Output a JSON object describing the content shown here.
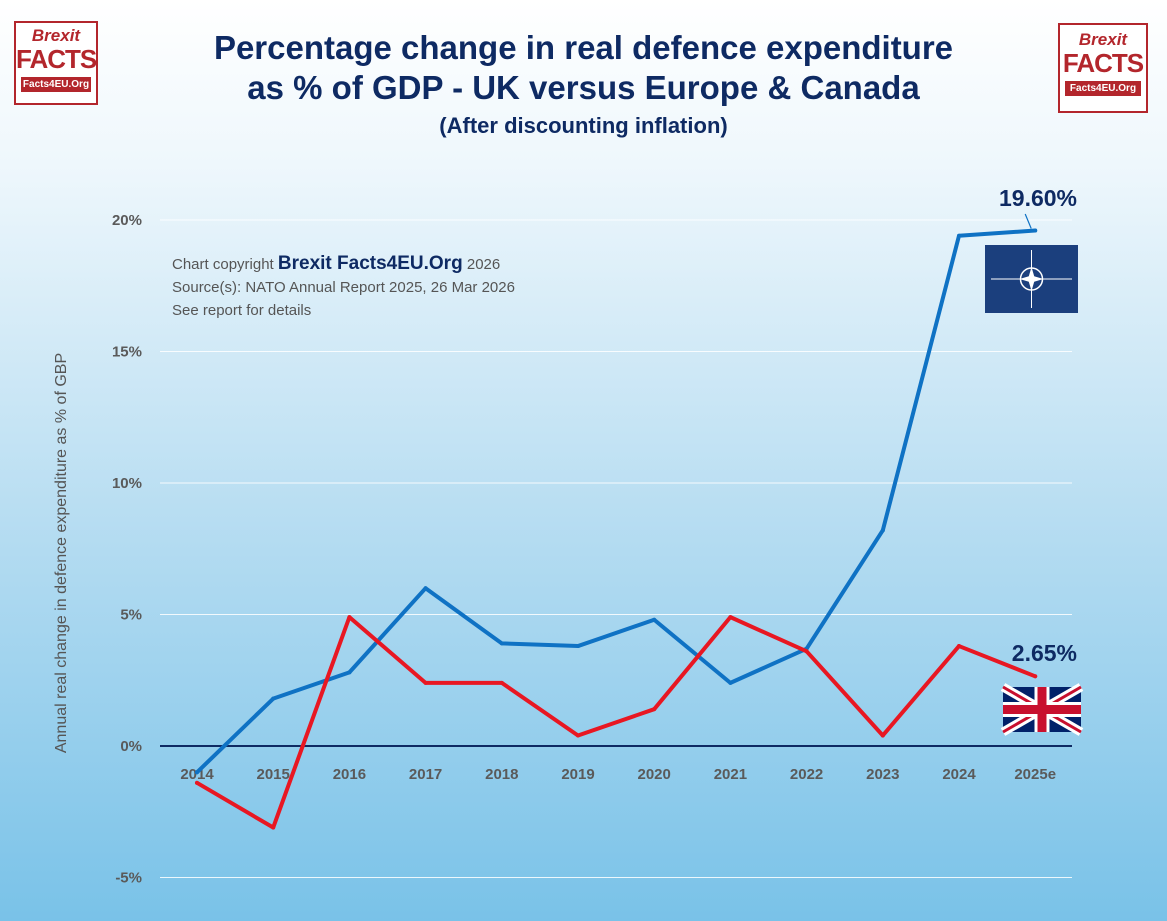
{
  "header": {
    "title_line1": "Percentage change in real defence expenditure",
    "title_line2": "as % of GDP - UK versus Europe & Canada",
    "subtitle": "(After discounting inflation)"
  },
  "logo": {
    "line1": "Brexit",
    "line2": "FACTS",
    "line3": "Facts4EU.Org"
  },
  "credit": {
    "prefix": "Chart copyright ",
    "brand": "Brexit Facts4EU.Org",
    "year": " 2026",
    "source": "Source(s): NATO Annual Report 2025, 26 Mar 2026",
    "note": "See report for details"
  },
  "colors": {
    "nato": "#0f72c4",
    "uk": "#e81722",
    "title": "#0e2a63"
  },
  "chart_data": {
    "type": "line",
    "title": "Percentage change in real defence expenditure as % of GDP - UK versus Europe & Canada",
    "subtitle": "(After discounting inflation)",
    "ylabel": "Annual real change in defence expenditure as % of GBP",
    "categories": [
      "2014",
      "2015",
      "2016",
      "2017",
      "2018",
      "2019",
      "2020",
      "2021",
      "2022",
      "2023",
      "2024",
      "2025e"
    ],
    "ylim": [
      -5,
      20
    ],
    "yticks": [
      -5,
      0,
      5,
      10,
      15,
      20
    ],
    "ytick_labels": [
      "-5%",
      "0%",
      "5%",
      "10%",
      "15%",
      "20%"
    ],
    "grid": true,
    "series": [
      {
        "key": "nato",
        "values": [
          -1.0,
          1.8,
          2.8,
          6.0,
          3.9,
          3.8,
          4.8,
          2.4,
          3.7,
          8.2,
          19.4,
          19.6
        ],
        "end_label": "19.60%",
        "legend_icon": "nato-flag-icon"
      },
      {
        "key": "uk",
        "values": [
          -1.4,
          -3.1,
          4.9,
          2.4,
          2.4,
          0.4,
          1.4,
          4.9,
          3.6,
          0.4,
          3.8,
          2.65
        ],
        "end_label": "2.65%",
        "legend_icon": "uk-flag-icon"
      }
    ]
  }
}
